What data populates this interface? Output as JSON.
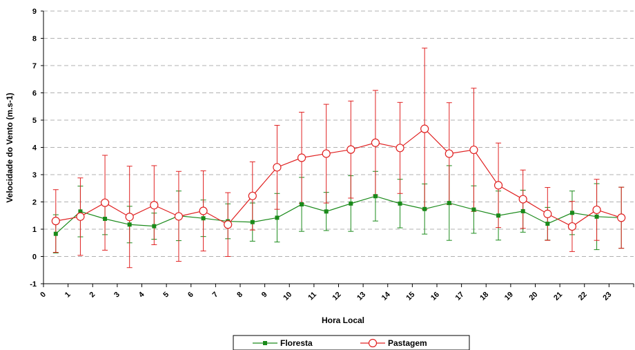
{
  "chart_data": {
    "type": "line",
    "title": "",
    "xlabel": "Hora Local",
    "ylabel": "Velocidade do Vento (m.s-1)",
    "ylim": [
      -1,
      9
    ],
    "yticks": [
      -1,
      0,
      1,
      2,
      3,
      4,
      5,
      6,
      7,
      8,
      9
    ],
    "categories": [
      "0",
      "1",
      "2",
      "3",
      "4",
      "5",
      "6",
      "7",
      "8",
      "9",
      "10",
      "11",
      "12",
      "13",
      "14",
      "15",
      "16",
      "17",
      "18",
      "19",
      "20",
      "21",
      "22",
      "23"
    ],
    "grid": "horizontal dashed",
    "legend": "bottom",
    "series": [
      {
        "name": "Floresta",
        "color": "#1a8a1a",
        "marker": "filled-square",
        "values": [
          0.83,
          1.65,
          1.38,
          1.17,
          1.11,
          1.49,
          1.4,
          1.29,
          1.26,
          1.42,
          1.91,
          1.65,
          1.94,
          2.21,
          1.94,
          1.74,
          1.96,
          1.72,
          1.5,
          1.66,
          1.2,
          1.6,
          1.46,
          1.42
        ],
        "error": [
          0.7,
          0.93,
          0.58,
          0.67,
          0.48,
          0.91,
          0.67,
          0.64,
          0.7,
          0.89,
          0.99,
          0.7,
          1.02,
          0.91,
          0.89,
          0.92,
          1.37,
          0.87,
          0.9,
          0.77,
          0.6,
          0.8,
          1.21,
          1.12
        ]
      },
      {
        "name": "Pastagem",
        "color": "#e02020",
        "marker": "open-circle",
        "values": [
          1.3,
          1.46,
          1.97,
          1.45,
          1.88,
          1.47,
          1.67,
          1.17,
          2.22,
          3.27,
          3.62,
          3.77,
          3.92,
          4.17,
          3.98,
          4.68,
          3.77,
          3.91,
          2.61,
          2.1,
          1.56,
          1.1,
          1.71,
          1.42
        ],
        "error": [
          1.15,
          1.42,
          1.74,
          1.86,
          1.45,
          1.65,
          1.47,
          1.17,
          1.25,
          1.54,
          1.67,
          1.81,
          1.78,
          1.92,
          1.67,
          2.96,
          1.87,
          2.26,
          1.55,
          1.07,
          0.97,
          0.92,
          1.12,
          1.12
        ]
      }
    ]
  }
}
